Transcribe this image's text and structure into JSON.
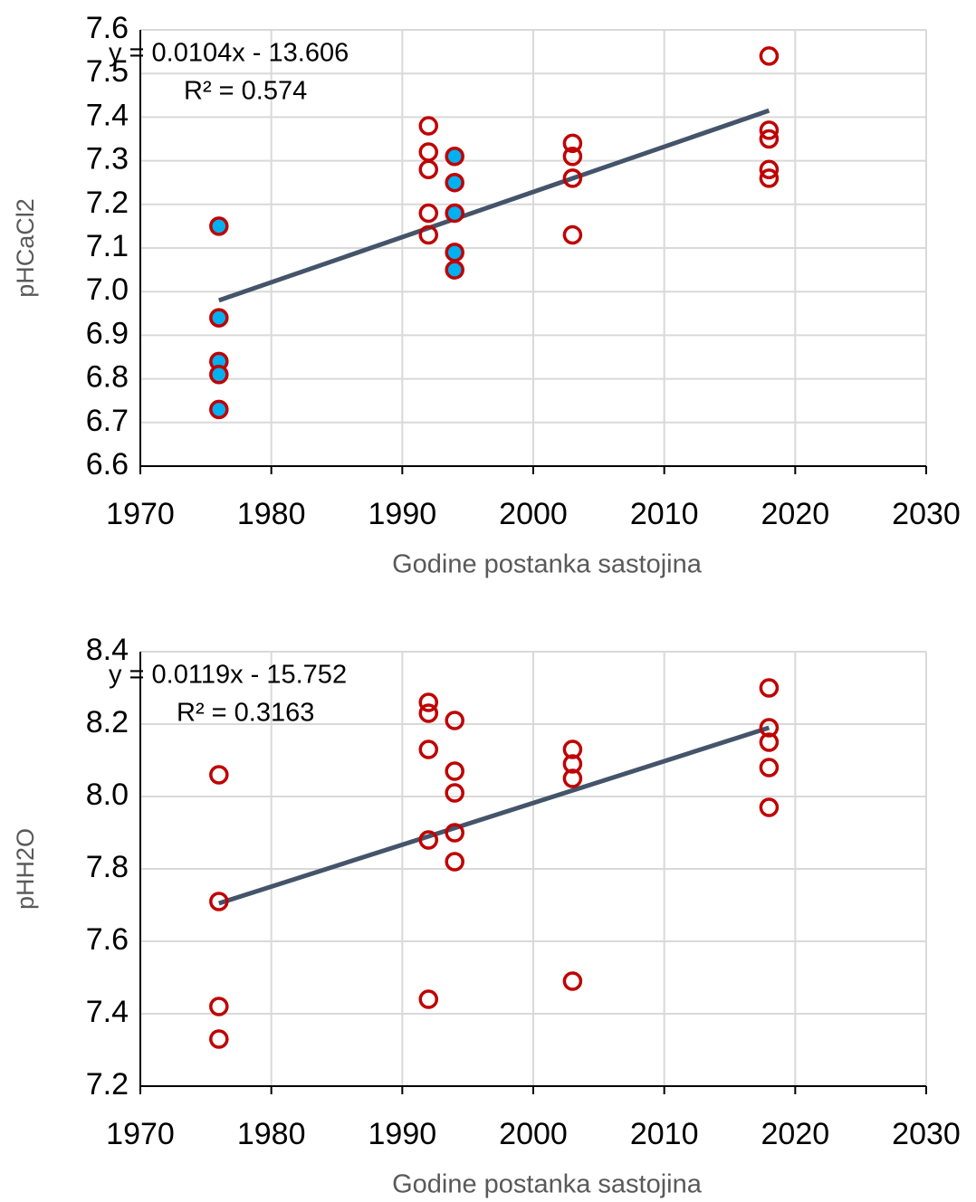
{
  "chart_data": [
    {
      "type": "scatter",
      "x_label": "Godine postanka sastojina",
      "y_label": "pHCaCl2",
      "xlim": [
        1970,
        2030
      ],
      "xticks": [
        1970,
        1980,
        1990,
        2000,
        2010,
        2020,
        2030
      ],
      "ylim": [
        6.6,
        7.6
      ],
      "yticks": [
        6.6,
        6.7,
        6.8,
        6.9,
        {
          "value": 7,
          "label": "7.0"
        },
        7.1,
        7.2,
        7.3,
        7.4,
        7.5,
        7.6
      ],
      "grid": true,
      "series": [
        {
          "color": "#c00000",
          "fill": "#00b0f0",
          "x": [
            1976,
            1976,
            1976,
            1976,
            1976,
            1994,
            1994,
            1994,
            1994,
            1994
          ],
          "values": [
            7.15,
            6.94,
            6.84,
            6.81,
            6.73,
            7.31,
            7.25,
            7.18,
            7.09,
            7.05
          ]
        },
        {
          "color": "#c00000",
          "fill": "none",
          "x": [
            1992,
            1992,
            1992,
            1992,
            1992,
            2003,
            2003,
            2003,
            2003,
            2018,
            2018,
            2018,
            2018,
            2018
          ],
          "values": [
            7.38,
            7.32,
            7.28,
            7.18,
            7.13,
            7.34,
            7.31,
            7.26,
            7.13,
            7.54,
            7.37,
            7.35,
            7.28,
            7.26
          ]
        }
      ],
      "trendline": {
        "color": "#44546a",
        "x": [
          1976,
          2018
        ],
        "values": [
          6.98,
          7.415
        ],
        "label": "y = 0.0104x - 13.606",
        "r2_label": "R² = 0.574"
      }
    },
    {
      "type": "scatter",
      "x_label": "Godine postanka sastojina",
      "y_label": "pHH2O",
      "xlim": [
        1970,
        2030
      ],
      "xticks": [
        1970,
        1980,
        1990,
        2000,
        2010,
        2020,
        2030
      ],
      "ylim": [
        7.2,
        8.4
      ],
      "yticks": [
        7.2,
        7.4,
        7.6,
        7.8,
        {
          "value": 8,
          "label": "8.0"
        },
        8.2,
        8.4
      ],
      "grid": true,
      "series": [
        {
          "color": "#c00000",
          "fill": "none",
          "x": [
            1976,
            1976,
            1976,
            1976,
            1992,
            1992,
            1992,
            1992,
            1992,
            1994,
            1994,
            1994,
            1994,
            1994,
            2003,
            2003,
            2003,
            2003,
            2018,
            2018,
            2018,
            2018,
            2018
          ],
          "values": [
            8.06,
            7.71,
            7.42,
            7.33,
            8.26,
            8.23,
            8.13,
            7.88,
            7.44,
            8.21,
            8.07,
            8.01,
            7.9,
            7.82,
            8.13,
            8.09,
            8.05,
            7.49,
            8.3,
            8.19,
            8.15,
            8.08,
            7.97
          ]
        }
      ],
      "trendline": {
        "color": "#44546a",
        "x": [
          1976,
          2018
        ],
        "values": [
          7.705,
          8.19
        ],
        "label": "y = 0.0119x - 15.752",
        "r2_label": "R² = 0.3163"
      }
    }
  ]
}
